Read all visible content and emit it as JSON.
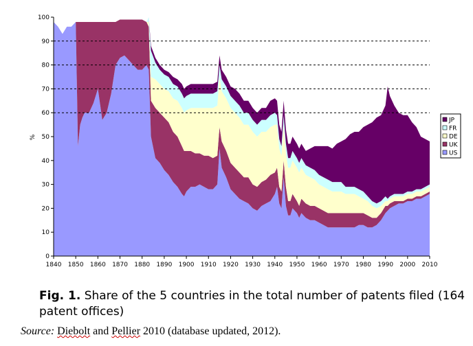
{
  "chart_data": {
    "type": "area",
    "stacked": true,
    "ylabel": "%",
    "xlim": [
      1840,
      2010
    ],
    "ylim": [
      0,
      100
    ],
    "x_ticks": [
      1840,
      1850,
      1860,
      1870,
      1880,
      1890,
      1900,
      1910,
      1920,
      1930,
      1940,
      1950,
      1960,
      1970,
      1980,
      1990,
      2000,
      2010
    ],
    "y_ticks": [
      0,
      10,
      20,
      30,
      40,
      50,
      60,
      70,
      80,
      90,
      100
    ],
    "gridlines": [
      60,
      70,
      80,
      90
    ],
    "legend_position": "right",
    "legend_order": [
      "JP",
      "FR",
      "DE",
      "UK",
      "US"
    ],
    "x": [
      1840,
      1842,
      1844,
      1846,
      1848,
      1850,
      1851,
      1852,
      1853,
      1854,
      1856,
      1858,
      1860,
      1862,
      1864,
      1866,
      1868,
      1870,
      1872,
      1874,
      1876,
      1878,
      1880,
      1882,
      1883,
      1884,
      1886,
      1888,
      1890,
      1892,
      1894,
      1896,
      1898,
      1899,
      1900,
      1902,
      1904,
      1906,
      1908,
      1910,
      1912,
      1914,
      1915,
      1916,
      1918,
      1920,
      1922,
      1924,
      1926,
      1928,
      1930,
      1932,
      1934,
      1936,
      1938,
      1940,
      1941,
      1942,
      1943,
      1944,
      1945,
      1946,
      1947,
      1948,
      1950,
      1951,
      1952,
      1954,
      1956,
      1958,
      1960,
      1962,
      1964,
      1966,
      1968,
      1970,
      1972,
      1974,
      1976,
      1978,
      1980,
      1982,
      1984,
      1986,
      1988,
      1990,
      1991,
      1992,
      1994,
      1996,
      1998,
      2000,
      2002,
      2004,
      2006,
      2008,
      2010
    ],
    "series": [
      {
        "name": "US",
        "color": "#9999ff",
        "values": [
          98,
          96,
          93,
          96,
          96,
          98,
          46,
          55,
          58,
          60,
          60,
          64,
          70,
          57,
          60,
          68,
          80,
          83,
          84,
          82,
          80,
          78,
          78,
          80,
          78,
          50,
          41,
          39,
          36,
          34,
          31,
          29,
          26,
          25,
          27,
          29,
          29,
          30,
          29,
          28,
          28,
          30,
          45,
          37,
          33,
          28,
          26,
          24,
          23,
          22,
          20,
          19,
          21,
          22,
          23,
          26,
          29,
          22,
          20,
          33,
          21,
          17,
          17,
          20,
          18,
          16,
          18,
          16,
          15,
          15,
          14,
          13,
          12,
          12,
          12,
          12,
          12,
          12,
          12,
          13,
          13,
          12,
          12,
          13,
          15,
          18,
          19,
          20,
          21,
          22,
          22,
          23,
          23,
          24,
          24,
          25,
          26
        ]
      },
      {
        "name": "UK",
        "color": "#993366",
        "values": [
          0,
          0,
          0,
          0,
          0,
          0,
          52,
          43,
          40,
          38,
          38,
          34,
          28,
          41,
          38,
          30,
          18,
          16,
          15,
          17,
          19,
          21,
          21,
          18,
          18,
          15,
          21,
          21,
          22,
          22,
          21,
          21,
          20,
          19,
          17,
          15,
          14,
          13,
          13,
          14,
          13,
          12,
          9,
          11,
          11,
          11,
          11,
          11,
          10,
          11,
          10,
          10,
          10,
          10,
          11,
          9,
          8,
          7,
          7,
          7,
          8,
          6,
          6,
          6,
          5,
          5,
          6,
          6,
          6,
          6,
          6,
          6,
          6,
          6,
          6,
          6,
          6,
          6,
          6,
          5,
          5,
          5,
          4,
          3,
          3,
          3,
          2,
          2,
          2,
          1,
          1,
          1,
          1,
          1,
          1,
          1,
          1
        ]
      },
      {
        "name": "DE",
        "color": "#ffffcc",
        "values": [
          0,
          0,
          0,
          0,
          0,
          0,
          0,
          0,
          0,
          0,
          0,
          0,
          0,
          0,
          0,
          0,
          0,
          0,
          0,
          0,
          0,
          0,
          0,
          0,
          2,
          10,
          12,
          12,
          12,
          13,
          14,
          15,
          16,
          16,
          17,
          18,
          19,
          19,
          20,
          20,
          21,
          21,
          21,
          21,
          22,
          23,
          23,
          23,
          22,
          22,
          22,
          21,
          21,
          20,
          20,
          20,
          18,
          16,
          15,
          15,
          14,
          14,
          14,
          14,
          14,
          14,
          13,
          12,
          12,
          11,
          10,
          10,
          10,
          9,
          9,
          9,
          8,
          8,
          8,
          7,
          6,
          6,
          5,
          4,
          3,
          2,
          2,
          2,
          2,
          2,
          2,
          2,
          2,
          2,
          2,
          2,
          2
        ]
      },
      {
        "name": "FR",
        "color": "#ccffff",
        "values": [
          0,
          0,
          0,
          0,
          0,
          0,
          0,
          0,
          0,
          0,
          0,
          0,
          0,
          0,
          0,
          0,
          0,
          0,
          0,
          0,
          0,
          0,
          0,
          0,
          2,
          11,
          7,
          6,
          6,
          6,
          6,
          6,
          6,
          6,
          6,
          6,
          6,
          6,
          6,
          6,
          6,
          6,
          5,
          5,
          5,
          5,
          5,
          5,
          5,
          5,
          5,
          5,
          5,
          5,
          5,
          5,
          4,
          4,
          4,
          4,
          4,
          4,
          4,
          4,
          4,
          4,
          4,
          4,
          4,
          4,
          4,
          4,
          4,
          4,
          4,
          4,
          3,
          3,
          3,
          3,
          3,
          2,
          2,
          2,
          2,
          2,
          1,
          1,
          1,
          1,
          1,
          1,
          1,
          1,
          1,
          1,
          1
        ]
      },
      {
        "name": "JP",
        "color": "#660066",
        "values": [
          0,
          0,
          0,
          0,
          0,
          0,
          0,
          0,
          0,
          0,
          0,
          0,
          0,
          0,
          0,
          0,
          0,
          0,
          0,
          0,
          0,
          0,
          0,
          0,
          0,
          2,
          2,
          2,
          2,
          2,
          3,
          3,
          4,
          4,
          4,
          4,
          4,
          4,
          4,
          4,
          4,
          4,
          4,
          4,
          4,
          4,
          5,
          5,
          5,
          5,
          5,
          5,
          5,
          5,
          6,
          6,
          6,
          6,
          6,
          6,
          6,
          6,
          6,
          6,
          6,
          6,
          6,
          6,
          8,
          10,
          12,
          13,
          14,
          14,
          16,
          17,
          20,
          22,
          23,
          24,
          27,
          30,
          33,
          36,
          36,
          38,
          47,
          42,
          37,
          34,
          33,
          32,
          29,
          26,
          22,
          20,
          18
        ]
      }
    ]
  },
  "caption": {
    "figure_label": "Fig. 1.",
    "text": "Share of the 5 countries in the total number of patents filed (164 patent offices)"
  },
  "source": {
    "label": "Source:",
    "author1": "Diebolt",
    "and": "and",
    "author2": "Pellier",
    "rest": "2010 (database updated, 2012)."
  }
}
